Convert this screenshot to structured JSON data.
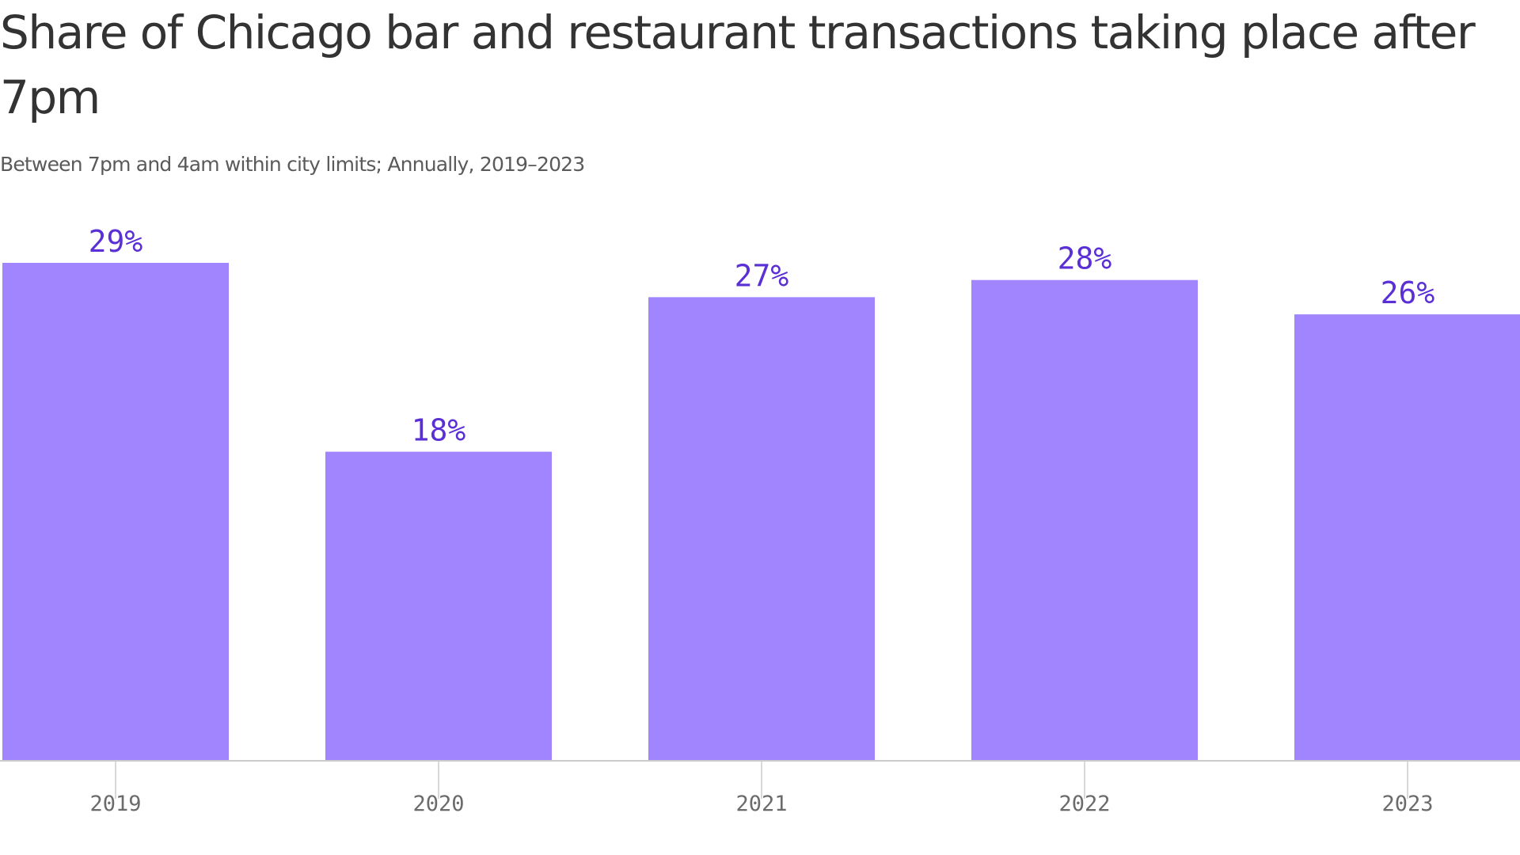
{
  "header": {
    "title": "Share of Chicago bar and restaurant transactions taking place after 7pm",
    "subtitle": "Between 7pm and 4am within city limits; Annually, 2019–2023"
  },
  "colors": {
    "bar": "#a185ff",
    "label": "#5b2fd6",
    "axis": "#cccccc",
    "tick_text": "#6b6b6b"
  },
  "chart_data": {
    "type": "bar",
    "title": "Share of Chicago bar and restaurant transactions taking place after 7pm",
    "subtitle": "Between 7pm and 4am within city limits; Annually, 2019–2023",
    "categories": [
      "2019",
      "2020",
      "2021",
      "2022",
      "2023"
    ],
    "values": [
      29,
      18,
      27,
      28,
      26
    ],
    "value_labels": [
      "29%",
      "18%",
      "27%",
      "28%",
      "26%"
    ],
    "xlabel": "",
    "ylabel": "",
    "ylim": [
      0,
      29
    ],
    "grid": false,
    "legend": "none"
  }
}
